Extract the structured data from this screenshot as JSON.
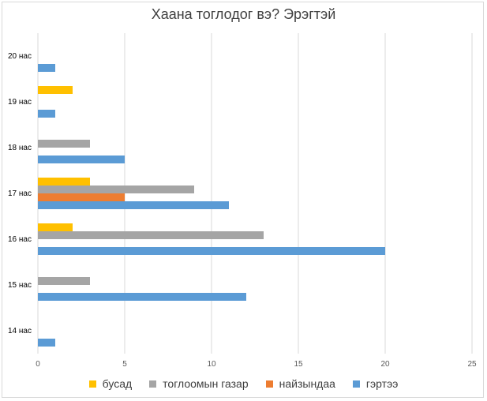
{
  "chart_data": {
    "type": "bar",
    "orientation": "horizontal",
    "title": "Хаана тоглодог вэ? Эрэгтэй",
    "categories": [
      "14 нас",
      "15 нас",
      "16 нас",
      "17 нас",
      "18 нас",
      "19 нас",
      "20 нас"
    ],
    "series": [
      {
        "name": "гэртээ",
        "color": "#5b9bd5",
        "values": [
          1,
          12,
          20,
          11,
          5,
          1,
          1
        ]
      },
      {
        "name": "найзындаа",
        "color": "#ed7d31",
        "values": [
          0,
          0,
          0,
          5,
          0,
          0,
          0
        ]
      },
      {
        "name": "тоглоомын газар",
        "color": "#a5a5a5",
        "values": [
          0,
          3,
          13,
          9,
          3,
          0,
          0
        ]
      },
      {
        "name": "бусад",
        "color": "#ffc000",
        "values": [
          0,
          0,
          2,
          3,
          0,
          2,
          0
        ]
      }
    ],
    "xlim": [
      0,
      25
    ],
    "xticks": [
      0,
      5,
      10,
      15,
      20,
      25
    ],
    "grid": "vertical",
    "legend_position": "bottom",
    "legend_order": [
      "бусад",
      "тоглоомын газар",
      "найзындаа",
      "гэртээ"
    ]
  }
}
